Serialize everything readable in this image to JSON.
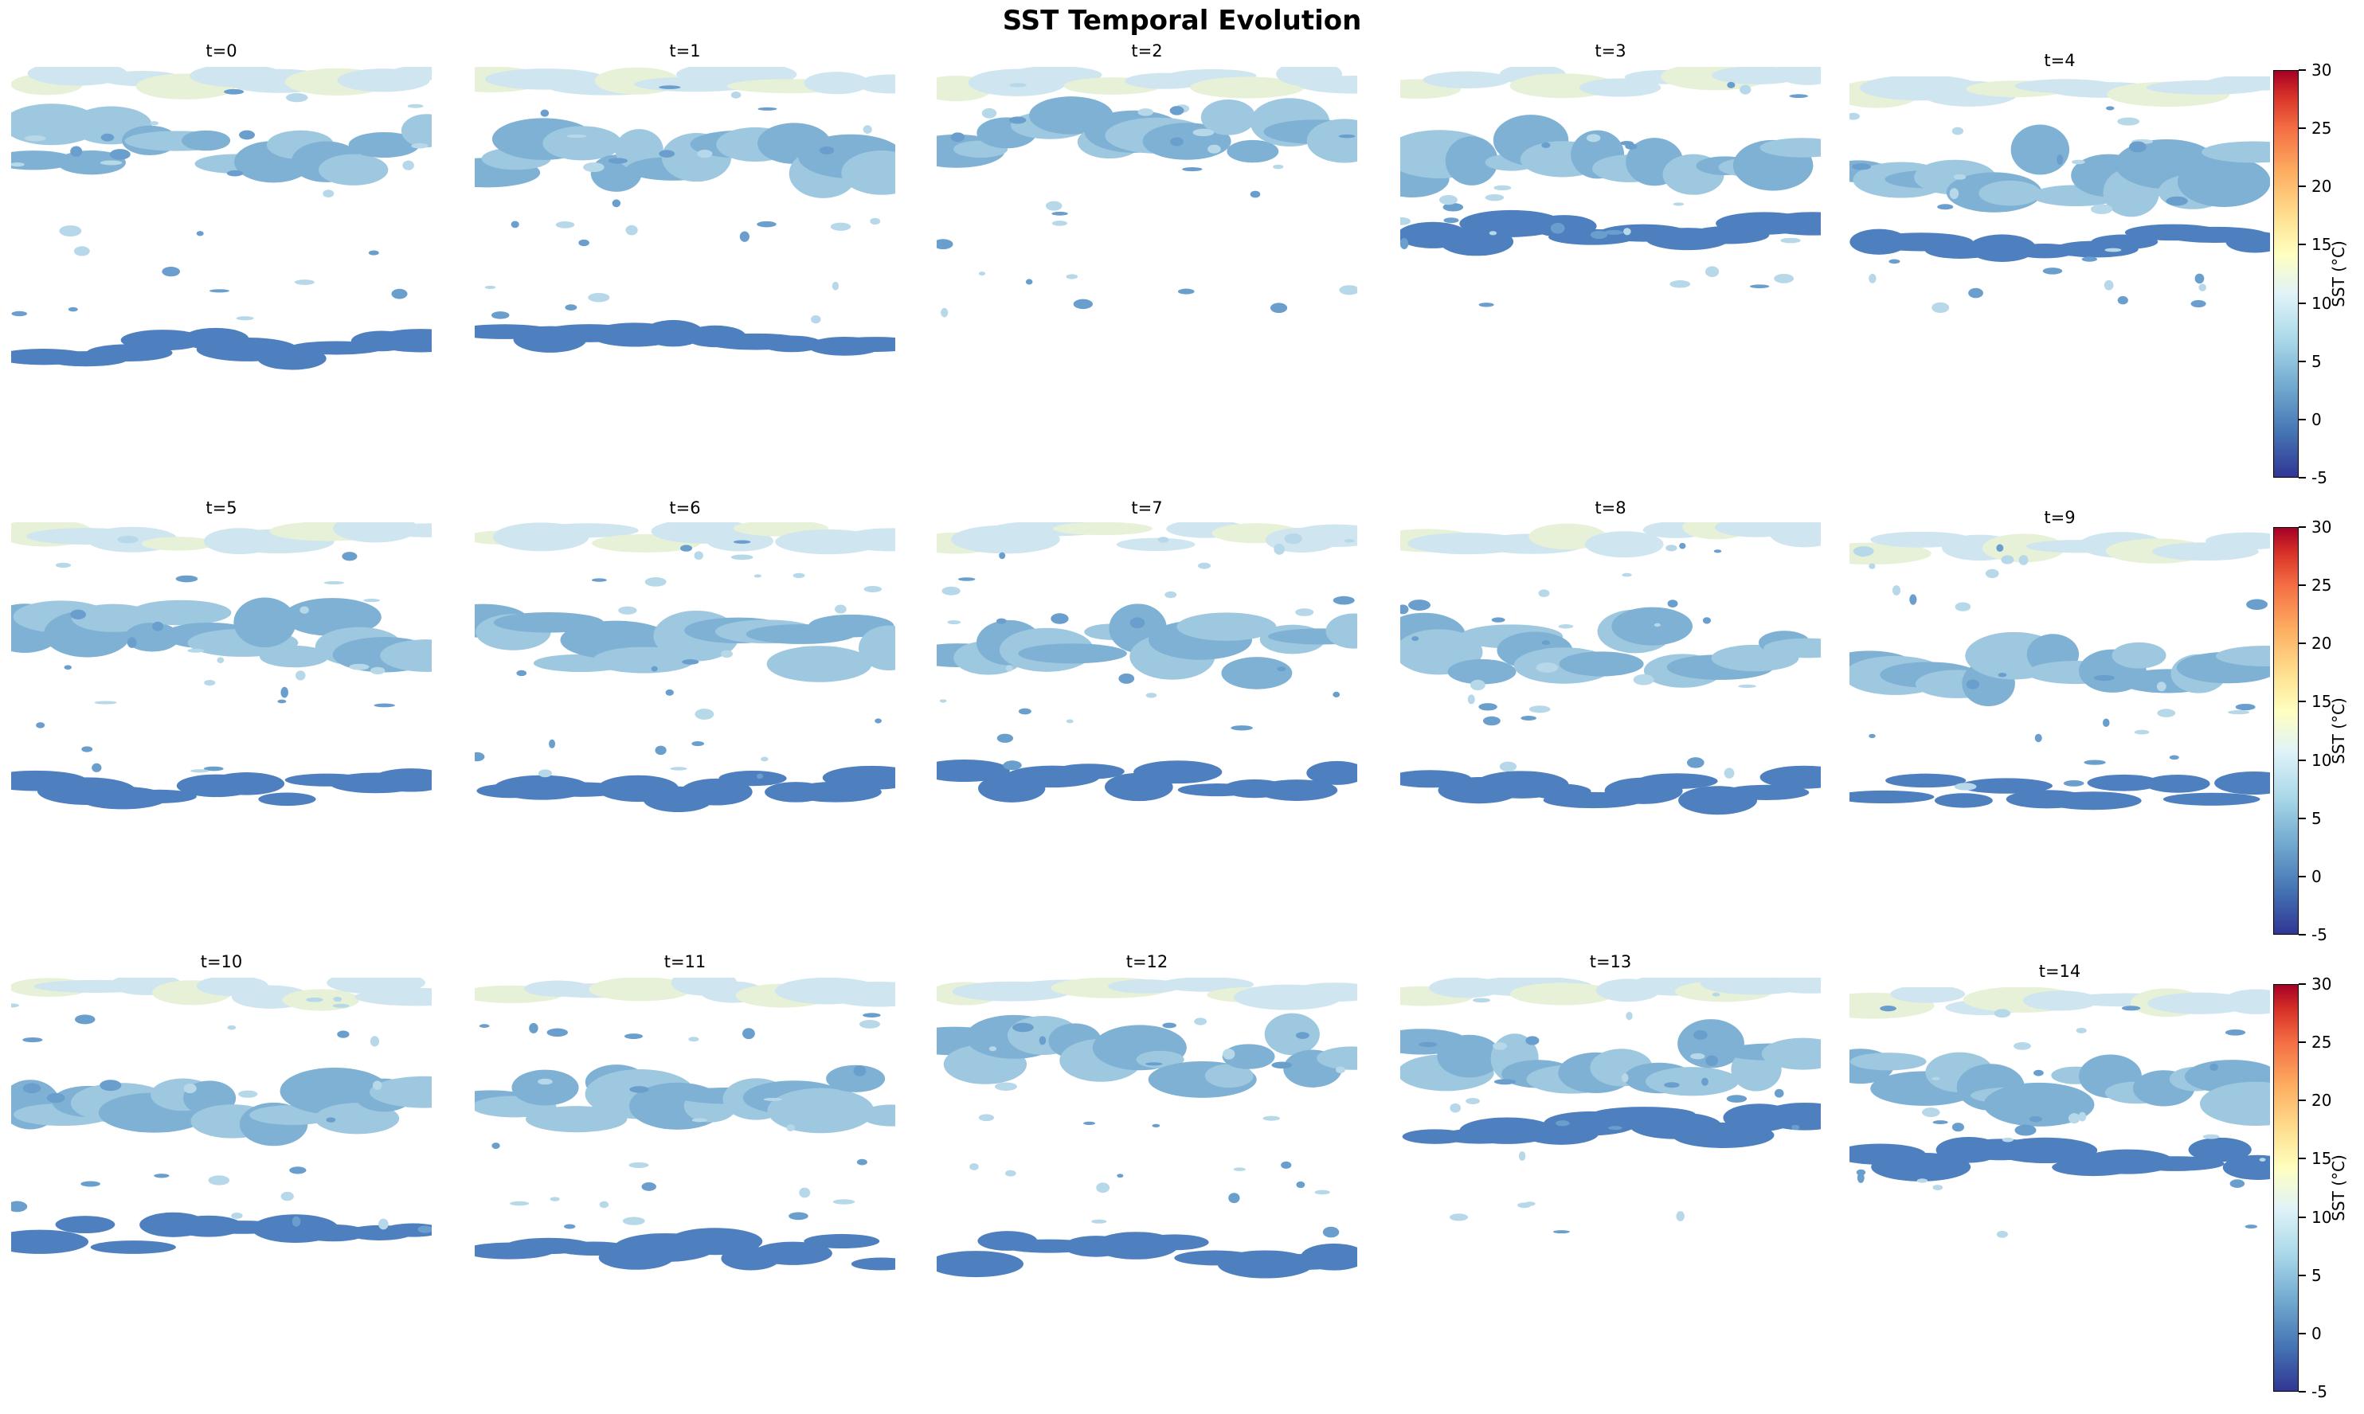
{
  "figure": {
    "title": "SST Temporal Evolution"
  },
  "colors": {
    "cmap": [
      "#313695",
      "#4575b4",
      "#74add1",
      "#abd9e9",
      "#e0f3f8",
      "#ffffbf",
      "#fee090",
      "#fdae61",
      "#f46d43",
      "#d73027",
      "#a50026"
    ]
  },
  "chart_data": {
    "type": "heatmap",
    "title": "SST Temporal Evolution",
    "grid": false,
    "axes_visible": false,
    "colorbar": {
      "label": "SST (°C)",
      "vmin": -5,
      "vmax": 30,
      "ticks": [
        "-5",
        "0",
        "5",
        "10",
        "15",
        "20",
        "25",
        "30"
      ],
      "colormap": "RdYlBu_r",
      "placement": "right of each row"
    },
    "panels": [
      {
        "title": "t=0"
      },
      {
        "title": "t=1"
      },
      {
        "title": "t=2"
      },
      {
        "title": "t=3"
      },
      {
        "title": "t=4"
      },
      {
        "title": "t=5"
      },
      {
        "title": "t=6"
      },
      {
        "title": "t=7"
      },
      {
        "title": "t=8"
      },
      {
        "title": "t=9"
      },
      {
        "title": "t=10"
      },
      {
        "title": "t=11"
      },
      {
        "title": "t=12"
      },
      {
        "title": "t=13"
      },
      {
        "title": "t=14"
      }
    ]
  }
}
